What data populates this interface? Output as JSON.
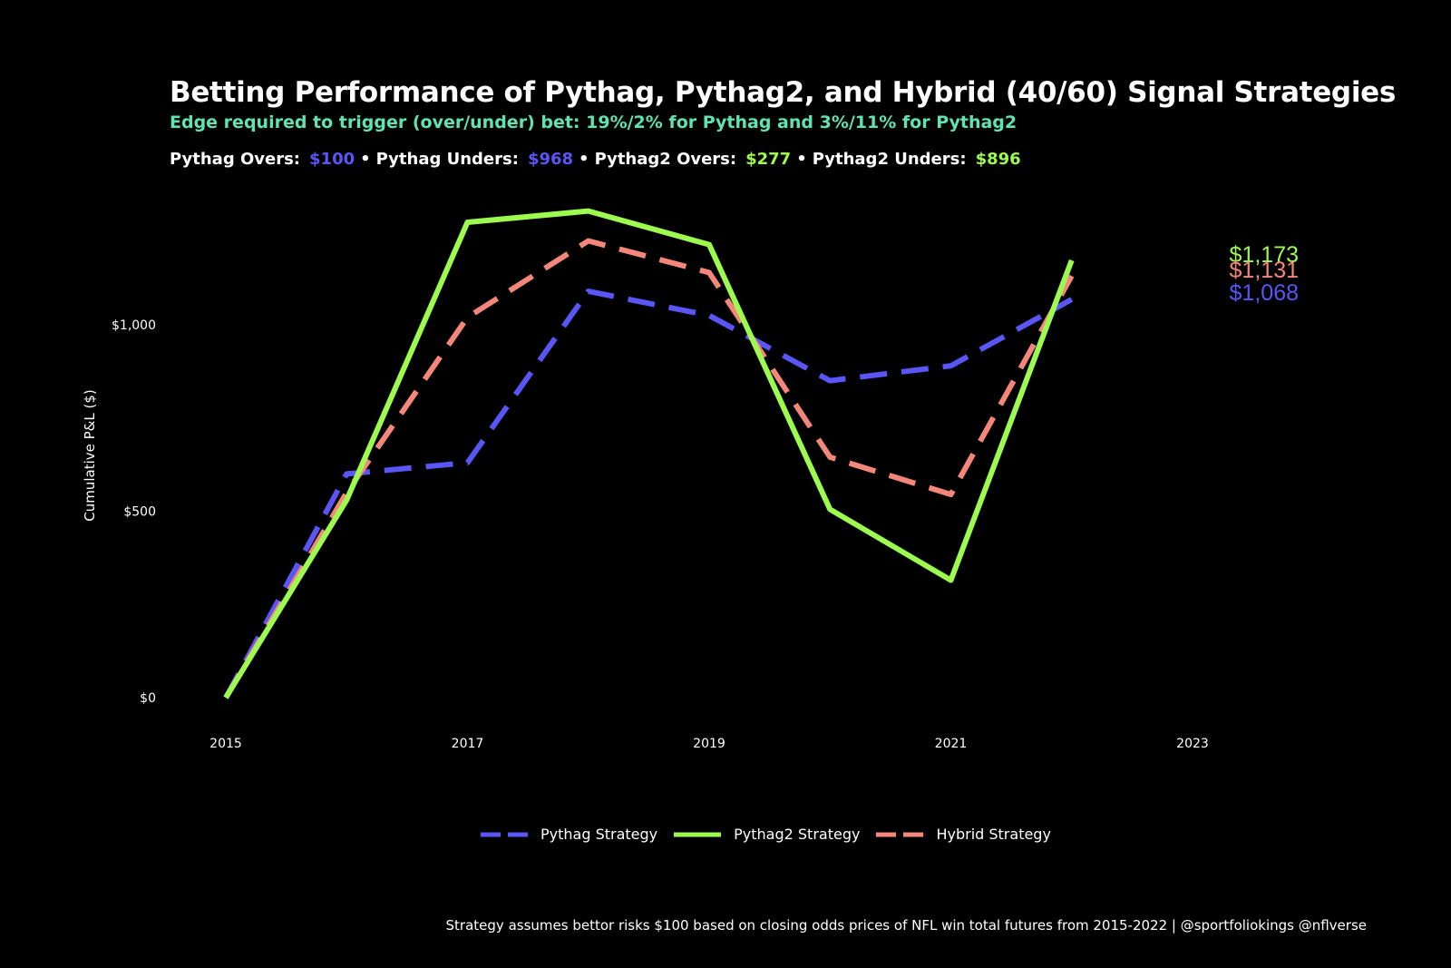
{
  "title": "Betting Performance of Pythag, Pythag2, and Hybrid (40/60) Signal Strategies",
  "subtitle": "Edge required to trigger (over/under) bet: 19%/2% for Pythag and 3%/11% for Pythag2",
  "summary": {
    "pythag_overs_label": "Pythag Overs:",
    "pythag_overs_value": "$100",
    "pythag_unders_label": "Pythag Unders:",
    "pythag_unders_value": "$968",
    "pythag2_overs_label": "Pythag2 Overs:",
    "pythag2_overs_value": "$277",
    "pythag2_unders_label": "Pythag2 Unders:",
    "pythag2_unders_value": "$896",
    "separator": "•"
  },
  "caption": "Strategy assumes bettor risks $100 based on closing odds prices of NFL win total futures from 2015-2022 | @sportfoliokings @nflverse",
  "colors": {
    "pythag": "#5a55f5",
    "pythag2": "#9dfa4f",
    "hybrid": "#f4877a",
    "subtitle": "#5fe3b0",
    "background": "#000000"
  },
  "chart_data": {
    "type": "line",
    "title": "Betting Performance of Pythag, Pythag2, and Hybrid (40/60) Signal Strategies",
    "xlabel": "",
    "ylabel": "Cumulative P&L ($)",
    "x": [
      2015,
      2016,
      2017,
      2018,
      2019,
      2020,
      2021,
      2022
    ],
    "xlim": [
      2015,
      2023
    ],
    "ylim": [
      0,
      1300
    ],
    "x_ticks": [
      2015,
      2017,
      2019,
      2021,
      2023
    ],
    "x_tick_labels": [
      "2015",
      "2017",
      "2019",
      "2021",
      "2023"
    ],
    "y_ticks": [
      0,
      500,
      1000
    ],
    "y_tick_labels": [
      "$0",
      "$500",
      "$1,000"
    ],
    "grid": false,
    "legend_position": "bottom",
    "series": [
      {
        "name": "Pythag Strategy",
        "key": "pythag",
        "style": "dashed",
        "values": [
          0,
          600,
          630,
          1090,
          1025,
          850,
          890,
          1068
        ],
        "end_label": "$1,068"
      },
      {
        "name": "Pythag2 Strategy",
        "key": "pythag2",
        "style": "solid",
        "values": [
          0,
          530,
          1275,
          1305,
          1215,
          505,
          315,
          1173
        ],
        "end_label": "$1,173"
      },
      {
        "name": "Hybrid Strategy",
        "key": "hybrid",
        "style": "dashed",
        "values": [
          0,
          550,
          1020,
          1225,
          1140,
          645,
          545,
          1131
        ],
        "end_label": "$1,131"
      }
    ]
  }
}
